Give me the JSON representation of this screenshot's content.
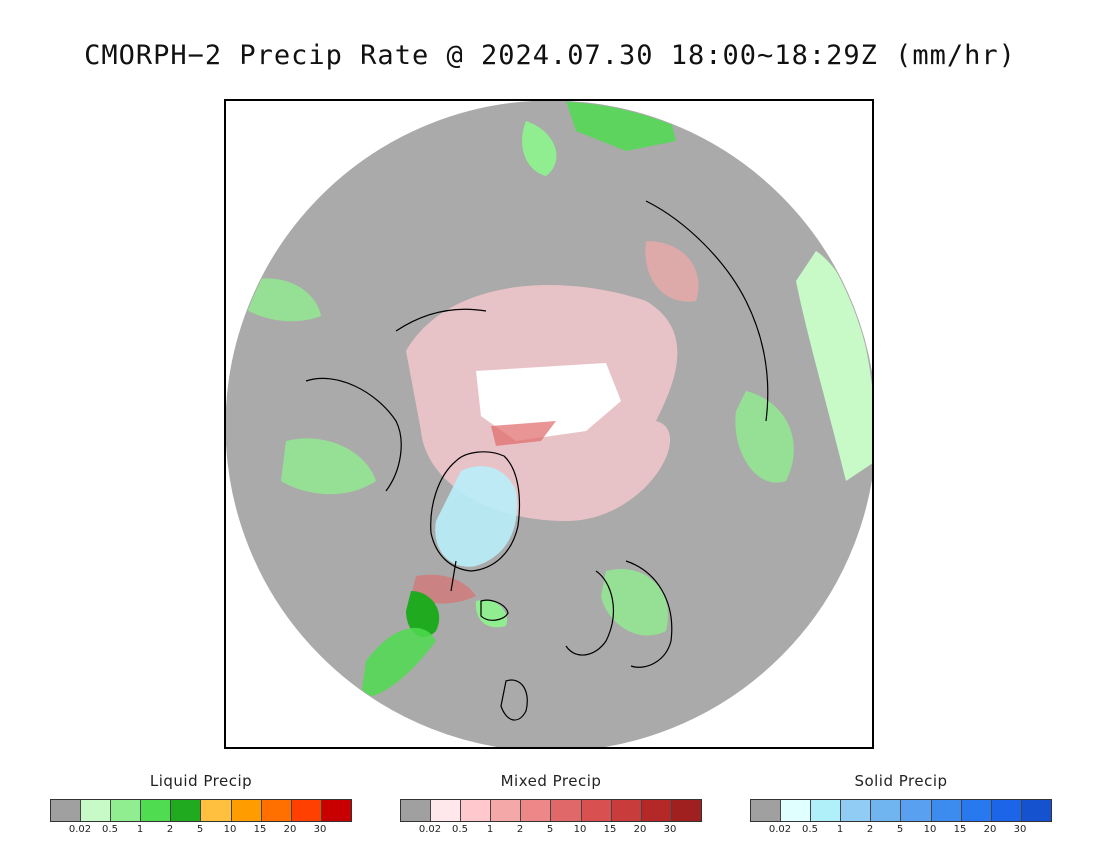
{
  "title": "CMORPH−2 Precip Rate @ 2024.07.30 18:00~18:29Z (mm/hr)",
  "map": {
    "projection": "north-polar-stereographic",
    "background_color": "#aaaaaa",
    "coastline_color": "#000000"
  },
  "legends": [
    {
      "title": "Liquid Precip",
      "colors": [
        "#a0a0a0",
        "#c8fac8",
        "#90ee90",
        "#50dc50",
        "#20aa20",
        "#ffc040",
        "#ff9c00",
        "#ff7000",
        "#ff4000",
        "#c80000"
      ],
      "ticks": [
        "0.02",
        "0.5",
        "1",
        "2",
        "5",
        "10",
        "15",
        "20",
        "30"
      ]
    },
    {
      "title": "Mixed Precip",
      "colors": [
        "#a0a0a0",
        "#ffe8ec",
        "#ffc8cc",
        "#f4a8a8",
        "#ee8888",
        "#e06868",
        "#d85050",
        "#c83c3c",
        "#b42828",
        "#a02020"
      ],
      "ticks": [
        "0.02",
        "0.5",
        "1",
        "2",
        "5",
        "10",
        "15",
        "20",
        "30"
      ]
    },
    {
      "title": "Solid Precip",
      "colors": [
        "#a0a0a0",
        "#e0ffff",
        "#b0f0f8",
        "#90ccf4",
        "#70b4f0",
        "#5aa0f0",
        "#3c8cf0",
        "#2878f0",
        "#1c64e8",
        "#1452d0"
      ],
      "ticks": [
        "0.02",
        "0.5",
        "1",
        "2",
        "5",
        "10",
        "15",
        "20",
        "30"
      ]
    }
  ]
}
